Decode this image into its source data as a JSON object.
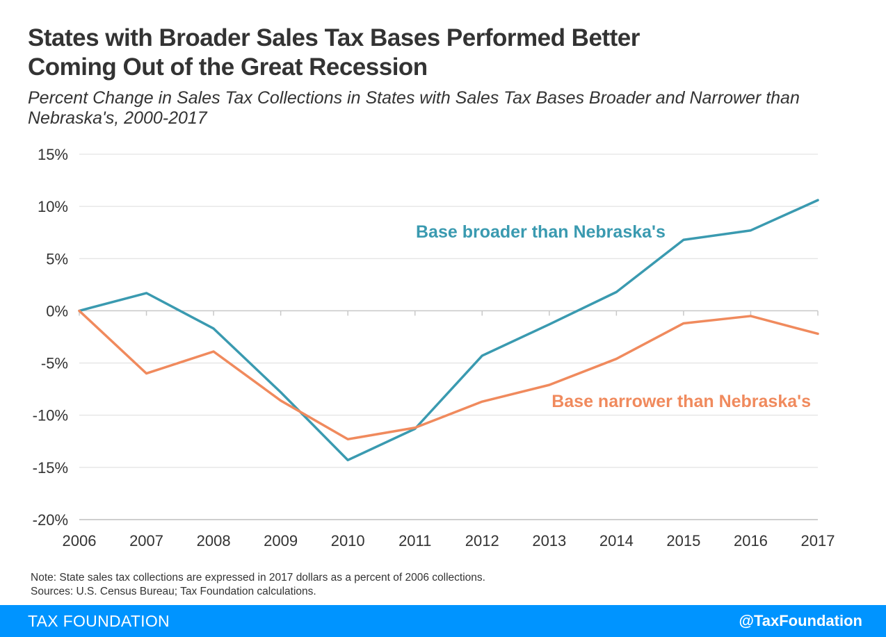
{
  "header": {
    "title_line1": "States with Broader Sales Tax Bases Performed Better",
    "title_line2": "Coming Out of the Great Recession",
    "subtitle_line1": "Percent Change in Sales Tax Collections in States with Sales Tax Bases Broader and Narrower than",
    "subtitle_line2": "Nebraska's, 2000-2017"
  },
  "chart_data": {
    "type": "line",
    "x": [
      2006,
      2007,
      2008,
      2009,
      2010,
      2011,
      2012,
      2013,
      2014,
      2015,
      2016,
      2017
    ],
    "x_tick_labels": [
      "2006",
      "2007",
      "2008",
      "2009",
      "2010",
      "2011",
      "2012",
      "2013",
      "2014",
      "2015",
      "2016",
      "2017"
    ],
    "y_ticks": [
      15,
      10,
      5,
      0,
      -5,
      -10,
      -15,
      -20
    ],
    "y_tick_labels": [
      "15%",
      "10%",
      "5%",
      "0%",
      "-5%",
      "-10%",
      "-15%",
      "-20%"
    ],
    "ylim": [
      -20,
      15
    ],
    "grid": true,
    "series": [
      {
        "name": "Base broader than Nebraska's",
        "color": "#3a9ab0",
        "values": [
          0,
          1.7,
          -1.7,
          -7.8,
          -14.3,
          -11.3,
          -4.3,
          -1.3,
          1.8,
          6.8,
          7.7,
          10.6
        ]
      },
      {
        "name": "Base narrower than Nebraska's",
        "color": "#f08a5d",
        "values": [
          0,
          -6.0,
          -3.9,
          -8.6,
          -12.3,
          -11.2,
          -8.7,
          -7.1,
          -4.6,
          -1.2,
          -0.5,
          -2.2
        ]
      }
    ]
  },
  "notes": {
    "note": "Note: State sales tax collections are expressed in 2017 dollars as a percent of 2006 collections.",
    "sources": "Sources: U.S. Census Bureau; Tax Foundation calculations."
  },
  "footer": {
    "brand": "TAX FOUNDATION",
    "handle": "@TaxFoundation",
    "bar_color": "#0094ff"
  }
}
